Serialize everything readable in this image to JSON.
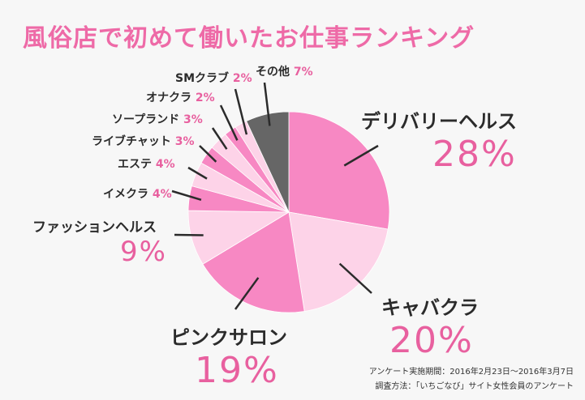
{
  "title": "風俗店で初めて働いたお仕事ランキング",
  "source": {
    "line1": "アンケート実施期間：2016年2月23日〜2016年3月7日",
    "line2": "調査方法：「いちごなび」サイト女性会員のアンケート"
  },
  "chart_data": {
    "type": "pie",
    "title": "風俗店で初めて働いたお仕事ランキング",
    "slices": [
      {
        "name": "デリバリーヘルス",
        "value": 28,
        "pct_label": "28%",
        "color": "#f788c3"
      },
      {
        "name": "キャバクラ",
        "value": 20,
        "pct_label": "20%",
        "color": "#fdd3e8"
      },
      {
        "name": "ピンクサロン",
        "value": 19,
        "pct_label": "19%",
        "color": "#f788c3"
      },
      {
        "name": "ファッションヘルス",
        "value": 9,
        "pct_label": "9%",
        "color": "#fdd3e8"
      },
      {
        "name": "イメクラ",
        "value": 4,
        "pct_label": "4%",
        "color": "#f788c3"
      },
      {
        "name": "エステ",
        "value": 4,
        "pct_label": "4%",
        "color": "#fdd3e8"
      },
      {
        "name": "ライブチャット",
        "value": 3,
        "pct_label": "3%",
        "color": "#f788c3"
      },
      {
        "name": "ソープランド",
        "value": 3,
        "pct_label": "3%",
        "color": "#fdd3e8"
      },
      {
        "name": "オナクラ",
        "value": 2,
        "pct_label": "2%",
        "color": "#f788c3"
      },
      {
        "name": "SMクラブ",
        "value": 2,
        "pct_label": "2%",
        "color": "#fdd3e8"
      },
      {
        "name": "その他",
        "value": 7,
        "pct_label": "7%",
        "color": "#666666"
      }
    ]
  }
}
